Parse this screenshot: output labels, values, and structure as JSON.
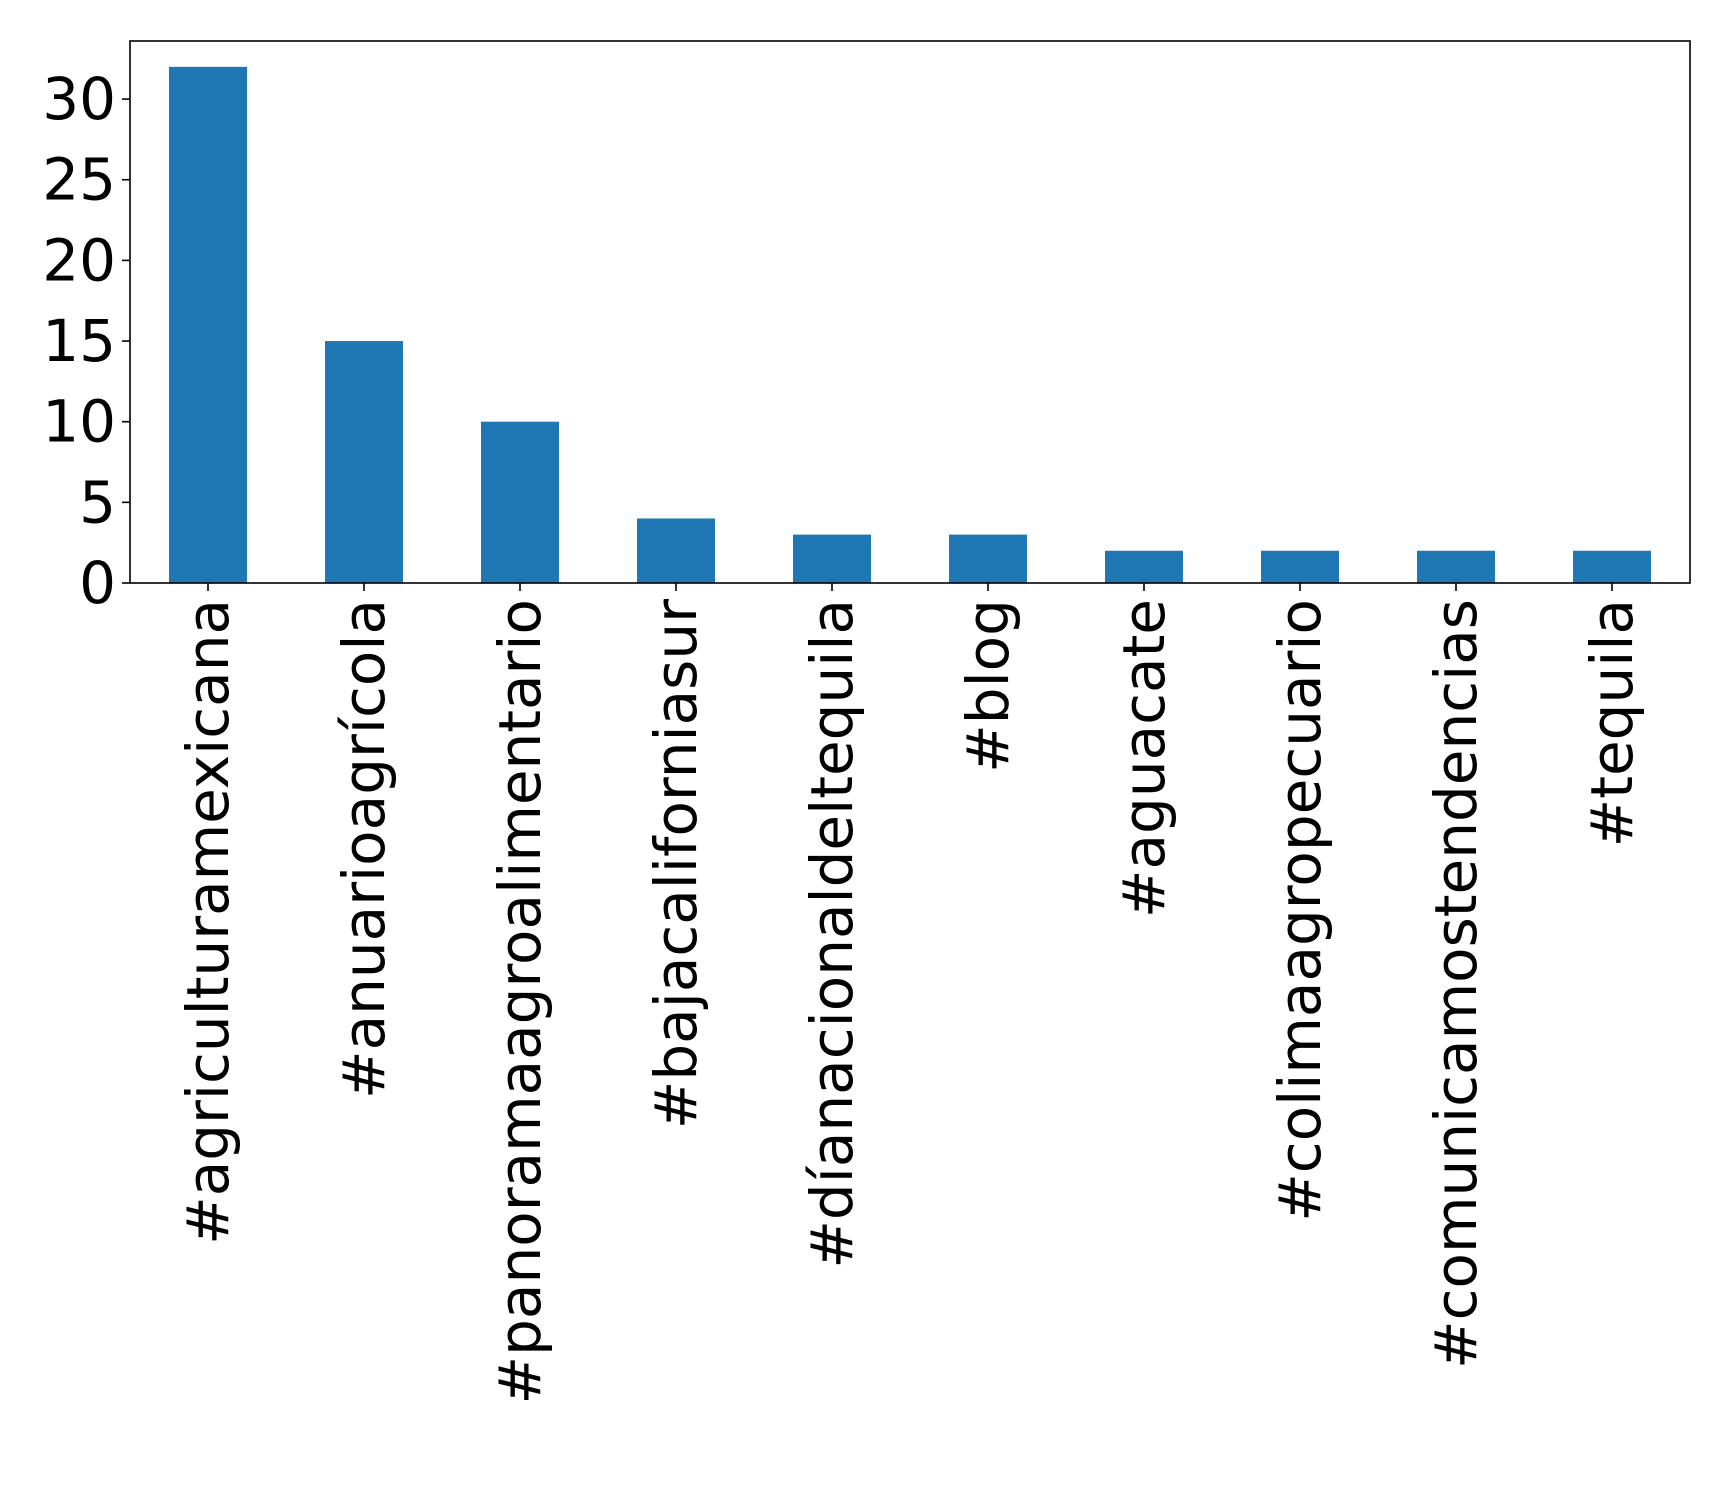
{
  "chart_data": {
    "type": "bar",
    "title": "",
    "xlabel": "",
    "ylabel": "",
    "categories": [
      "#agriculturamexicana",
      "#anuarioagrícola",
      "#panoramaagroalimentario",
      "#bajacaliforniasur",
      "#díanacionaldeltequila",
      "#blog",
      "#aguacate",
      "#colimaagropecuario",
      "#comunicamostendencias",
      "#tequila"
    ],
    "values": [
      32,
      15,
      10,
      4,
      3,
      3,
      2,
      2,
      2,
      2
    ],
    "ylim": [
      0,
      33.6
    ],
    "yticks": [
      0,
      5,
      10,
      15,
      20,
      25,
      30
    ],
    "grid": false,
    "legend": "none",
    "bar_color": "#1f77b4"
  }
}
